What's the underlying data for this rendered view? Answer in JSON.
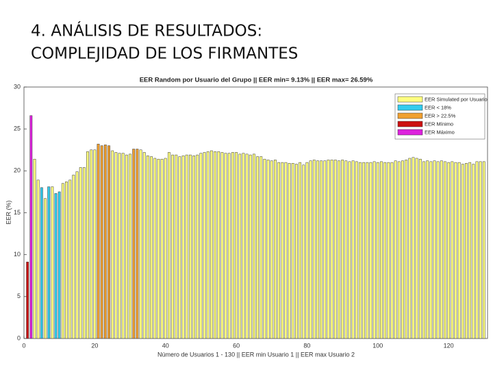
{
  "slide": {
    "title_lines": [
      "4. ANÁLISIS DE RESULTADOS:",
      "COMPLEJIDAD DE LOS FIRMANTES"
    ]
  },
  "chart_data": {
    "type": "bar",
    "title": "EER Random por Usuario del Grupo || EER min= 9.13% || EER max= 26.59%",
    "x_label": "Número de Usuarios 1 - 130 || EER min Usuario 1 || EER max Usuario 2",
    "y_label": "EER (%)",
    "xlim": [
      0,
      131
    ],
    "xticks": [
      0,
      20,
      40,
      60,
      80,
      100,
      120
    ],
    "ylim": [
      0,
      30
    ],
    "yticks": [
      0,
      5,
      10,
      15,
      20,
      25,
      30
    ],
    "grid": false,
    "legend": "upper right",
    "series": [
      {
        "name": "EER Simulated por Usuario",
        "color": "#ffff80",
        "x": [
          3,
          4,
          6,
          8,
          11,
          12,
          13,
          14,
          15,
          16,
          17,
          18,
          19,
          20,
          25,
          26,
          27,
          28,
          29,
          30,
          33,
          34,
          35,
          36,
          37,
          38,
          39,
          40,
          41,
          42,
          43,
          44,
          45,
          46,
          47,
          48,
          49,
          50,
          51,
          52,
          53,
          54,
          55,
          56,
          57,
          58,
          59,
          60,
          61,
          62,
          63,
          64,
          65,
          66,
          67,
          68,
          69,
          70,
          71,
          72,
          73,
          74,
          75,
          76,
          77,
          78,
          79,
          80,
          81,
          82,
          83,
          84,
          85,
          86,
          87,
          88,
          89,
          90,
          91,
          92,
          93,
          94,
          95,
          96,
          97,
          98,
          99,
          100,
          101,
          102,
          103,
          104,
          105,
          106,
          107,
          108,
          109,
          110,
          111,
          112,
          113,
          114,
          115,
          116,
          117,
          118,
          119,
          120,
          121,
          122,
          123,
          124,
          125,
          126,
          127,
          128,
          129,
          130
        ],
        "values": [
          21.4,
          18.9,
          16.7,
          18.1,
          18.5,
          18.7,
          18.9,
          19.5,
          19.9,
          20.4,
          20.4,
          22.3,
          22.5,
          22.5,
          22.4,
          22.2,
          22.1,
          22.1,
          21.9,
          22.0,
          22.5,
          22.2,
          21.8,
          21.7,
          21.5,
          21.4,
          21.4,
          21.5,
          22.2,
          21.9,
          21.9,
          21.7,
          21.8,
          21.9,
          21.9,
          21.8,
          21.9,
          22.1,
          22.2,
          22.3,
          22.4,
          22.3,
          22.3,
          22.2,
          22.1,
          22.1,
          22.2,
          22.2,
          22.0,
          22.1,
          22.0,
          21.9,
          22.0,
          21.7,
          21.7,
          21.4,
          21.3,
          21.2,
          21.3,
          21.0,
          21.0,
          21.0,
          20.9,
          20.9,
          20.8,
          21.0,
          20.7,
          21.0,
          21.2,
          21.3,
          21.2,
          21.2,
          21.2,
          21.3,
          21.3,
          21.3,
          21.2,
          21.3,
          21.2,
          21.1,
          21.2,
          21.1,
          21.0,
          21.0,
          21.0,
          21.0,
          21.1,
          21.0,
          21.1,
          21.0,
          21.0,
          21.0,
          21.2,
          21.1,
          21.2,
          21.3,
          21.5,
          21.6,
          21.5,
          21.4,
          21.1,
          21.2,
          21.1,
          21.2,
          21.1,
          21.2,
          21.1,
          21.0,
          21.1,
          21.0,
          21.0,
          20.8,
          20.9,
          21.0,
          20.8,
          21.1,
          21.1,
          21.1
        ]
      },
      {
        "name": "EER < 18%",
        "color": "#33ccee",
        "x": [
          5,
          7,
          9,
          10
        ],
        "values": [
          18.0,
          18.1,
          17.3,
          17.5
        ]
      },
      {
        "name": "EER > 22.5%",
        "color": "#f0a030",
        "x": [
          21,
          22,
          23,
          24,
          31,
          32
        ],
        "values": [
          23.2,
          23.0,
          23.1,
          23.0,
          22.6,
          22.6
        ]
      },
      {
        "name": "EER Mínimo",
        "color": "#cc1010",
        "x": [
          1
        ],
        "values": [
          9.13
        ]
      },
      {
        "name": "EER Máximo",
        "color": "#dd22dd",
        "x": [
          2
        ],
        "values": [
          26.59
        ]
      }
    ]
  }
}
